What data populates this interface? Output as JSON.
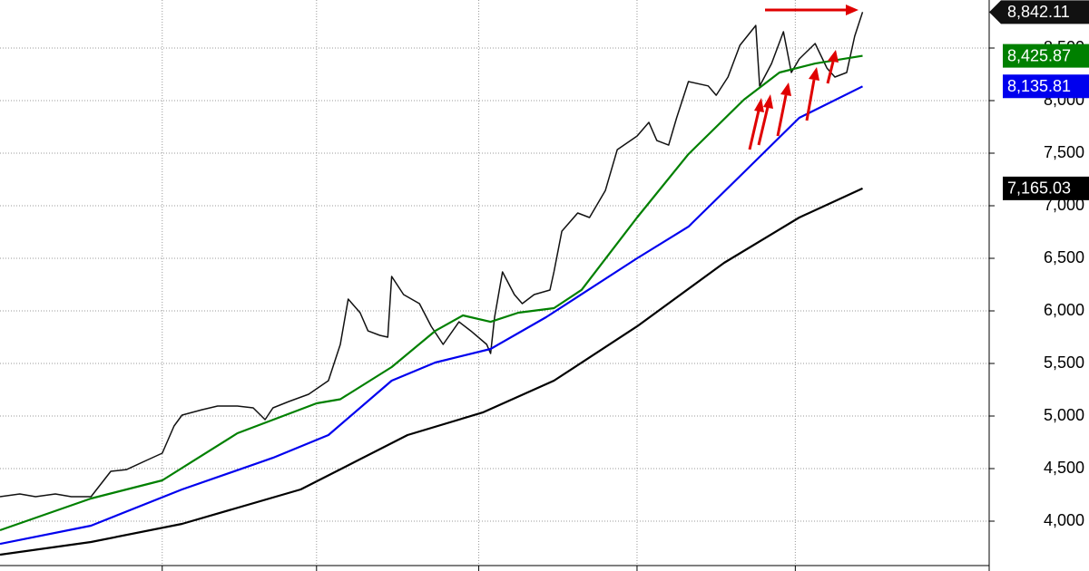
{
  "chart_data": {
    "type": "line",
    "xlim": [
      0,
      250
    ],
    "xticks": [
      41,
      80,
      121,
      161,
      201
    ],
    "ylim": [
      3526,
      8957
    ],
    "yticks": [
      {
        "value": 4000,
        "label": "4,000"
      },
      {
        "value": 4500,
        "label": "4,500"
      },
      {
        "value": 5000,
        "label": "5,000"
      },
      {
        "value": 5500,
        "label": "5,500"
      },
      {
        "value": 6000,
        "label": "6,000"
      },
      {
        "value": 6500,
        "label": "6,500"
      },
      {
        "value": 7000,
        "label": "7,000"
      },
      {
        "value": 7500,
        "label": "7,500"
      },
      {
        "value": 8000,
        "label": "8,000"
      },
      {
        "value": 8500,
        "label": "8,500"
      }
    ],
    "grid": true,
    "series": [
      {
        "color": "#111111",
        "label_style": "arrow",
        "x": [
          0,
          5,
          9,
          14,
          18,
          23,
          28,
          32,
          37,
          41,
          44,
          46,
          51,
          55,
          60,
          64,
          67,
          69,
          73,
          78,
          83,
          86,
          88,
          91,
          93,
          96,
          98,
          99,
          102,
          106,
          109,
          112,
          116,
          119,
          123,
          124,
          125,
          127,
          130,
          132,
          135,
          139,
          140,
          142,
          146,
          149,
          153,
          156,
          161,
          164,
          166,
          169,
          171,
          174,
          179,
          181,
          184,
          187,
          191,
          192,
          195,
          198,
          200,
          202,
          206,
          209,
          211,
          214,
          216,
          218
        ],
        "values": [
          4233,
          4259,
          4233,
          4259,
          4233,
          4233,
          4474,
          4491,
          4578,
          4647,
          4905,
          5009,
          5060,
          5095,
          5095,
          5078,
          4966,
          5078,
          5138,
          5207,
          5336,
          5681,
          6112,
          5983,
          5810,
          5767,
          5750,
          6328,
          6155,
          6069,
          5853,
          5681,
          5896,
          5810,
          5681,
          5595,
          5940,
          6371,
          6155,
          6069,
          6155,
          6198,
          6371,
          6758,
          6931,
          6888,
          7146,
          7534,
          7663,
          7793,
          7620,
          7577,
          7836,
          8181,
          8140,
          8051,
          8224,
          8526,
          8715,
          8138,
          8353,
          8655,
          8267,
          8396,
          8543,
          8310,
          8224,
          8267,
          8612,
          8842.11
        ],
        "last_label": "8,842.11"
      },
      {
        "color": "#008000",
        "label_style": "box",
        "x": [
          0,
          23,
          41,
          60,
          80,
          86,
          99,
          110,
          117,
          124,
          131,
          140,
          147,
          161,
          174,
          188,
          197,
          206,
          218
        ],
        "values": [
          3914,
          4216,
          4388,
          4836,
          5121,
          5160,
          5466,
          5810,
          5957,
          5896,
          5983,
          6026,
          6200,
          6888,
          7491,
          8009,
          8267,
          8353,
          8425.87
        ],
        "last_label": "8,425.87"
      },
      {
        "color": "#0000ee",
        "label_style": "box",
        "x": [
          0,
          23,
          46,
          69,
          83,
          99,
          110,
          124,
          138,
          161,
          174,
          188,
          202,
          218
        ],
        "values": [
          3784,
          3957,
          4302,
          4603,
          4819,
          5336,
          5509,
          5638,
          5940,
          6500,
          6801,
          7318,
          7836,
          8135.81
        ],
        "last_label": "8,135.81"
      },
      {
        "color": "#000000",
        "label_style": "box",
        "x": [
          0,
          23,
          46,
          76,
          103,
          122,
          140,
          161,
          183,
          202,
          218
        ],
        "values": [
          3681,
          3802,
          3974,
          4302,
          4819,
          5034,
          5336,
          5853,
          6457,
          6888,
          7165.03
        ],
        "last_label": "7,165.03"
      }
    ]
  }
}
